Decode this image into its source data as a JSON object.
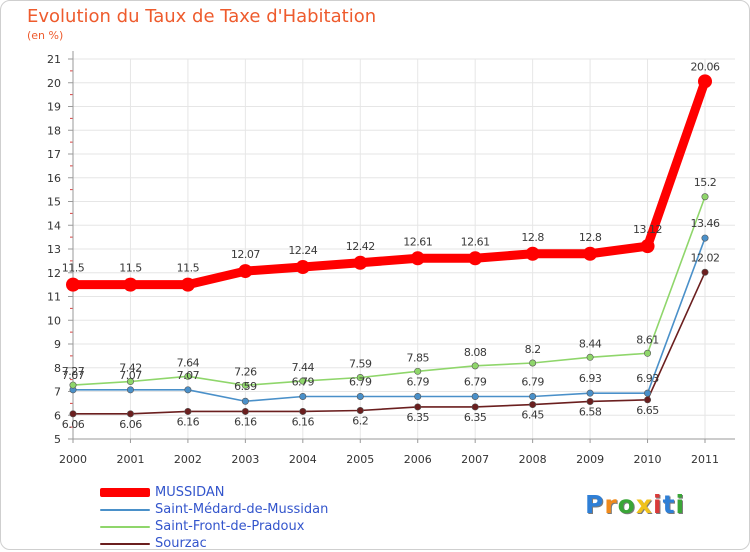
{
  "title": "Evolution du Taux de Taxe d'Habitation",
  "subtitle": "(en %)",
  "logo": {
    "text": "Proxiti",
    "colors": [
      "#2f7fd6",
      "#f08a1c",
      "#3aa637",
      "#f0c21c",
      "#d93a3a",
      "#2f7fd6",
      "#3aa637"
    ]
  },
  "chart_data": {
    "type": "line",
    "x": [
      "2000",
      "2001",
      "2002",
      "2003",
      "2004",
      "2005",
      "2006",
      "2007",
      "2008",
      "2009",
      "2010",
      "2011"
    ],
    "ylim": [
      5,
      21
    ],
    "yticks": [
      "5",
      "6",
      "7",
      "8",
      "9",
      "10",
      "11",
      "12",
      "13",
      "14",
      "15",
      "16",
      "17",
      "18",
      "19",
      "20",
      "21"
    ],
    "grid": true,
    "legend_position": "bottom-left",
    "series": [
      {
        "name": "MUSSIDAN",
        "color": "#ff0000",
        "values": [
          11.5,
          11.5,
          11.5,
          12.07,
          12.24,
          12.42,
          12.61,
          12.61,
          12.8,
          12.8,
          13.12,
          20.06
        ],
        "labels": [
          "11.5",
          "11.5",
          "11.5",
          "12.07",
          "12.24",
          "12.42",
          "12.61",
          "12.61",
          "12.8",
          "12.8",
          "13.12",
          "20.06"
        ]
      },
      {
        "name": "Saint-Médard-de-Mussidan",
        "color": "#4a90c9",
        "values": [
          7.07,
          7.07,
          7.07,
          6.59,
          6.79,
          6.79,
          6.79,
          6.79,
          6.79,
          6.93,
          6.93,
          13.46
        ],
        "labels": [
          "7.07",
          "7.07",
          "7.07",
          "6.59",
          "6.79",
          "6.79",
          "6.79",
          "6.79",
          "6.79",
          "6.93",
          "6.93",
          "13.46"
        ]
      },
      {
        "name": "Saint-Front-de-Pradoux",
        "color": "#8fd66b",
        "values": [
          7.27,
          7.42,
          7.64,
          7.26,
          7.44,
          7.59,
          7.85,
          8.08,
          8.2,
          8.44,
          8.61,
          15.2
        ],
        "labels": [
          "7.27",
          "7.42",
          "7.64",
          "7.26",
          "7.44",
          "7.59",
          "7.85",
          "8.08",
          "8.2",
          "8.44",
          "8.61",
          "15.2"
        ]
      },
      {
        "name": "Sourzac",
        "color": "#6b1f1f",
        "values": [
          6.06,
          6.06,
          6.16,
          6.16,
          6.16,
          6.2,
          6.35,
          6.35,
          6.45,
          6.58,
          6.65,
          12.02
        ],
        "labels": [
          "6.06",
          "6.06",
          "6.16",
          "6.16",
          "6.16",
          "6.2",
          "6.35",
          "6.35",
          "6.45",
          "6.58",
          "6.65",
          "12.02"
        ]
      }
    ]
  }
}
